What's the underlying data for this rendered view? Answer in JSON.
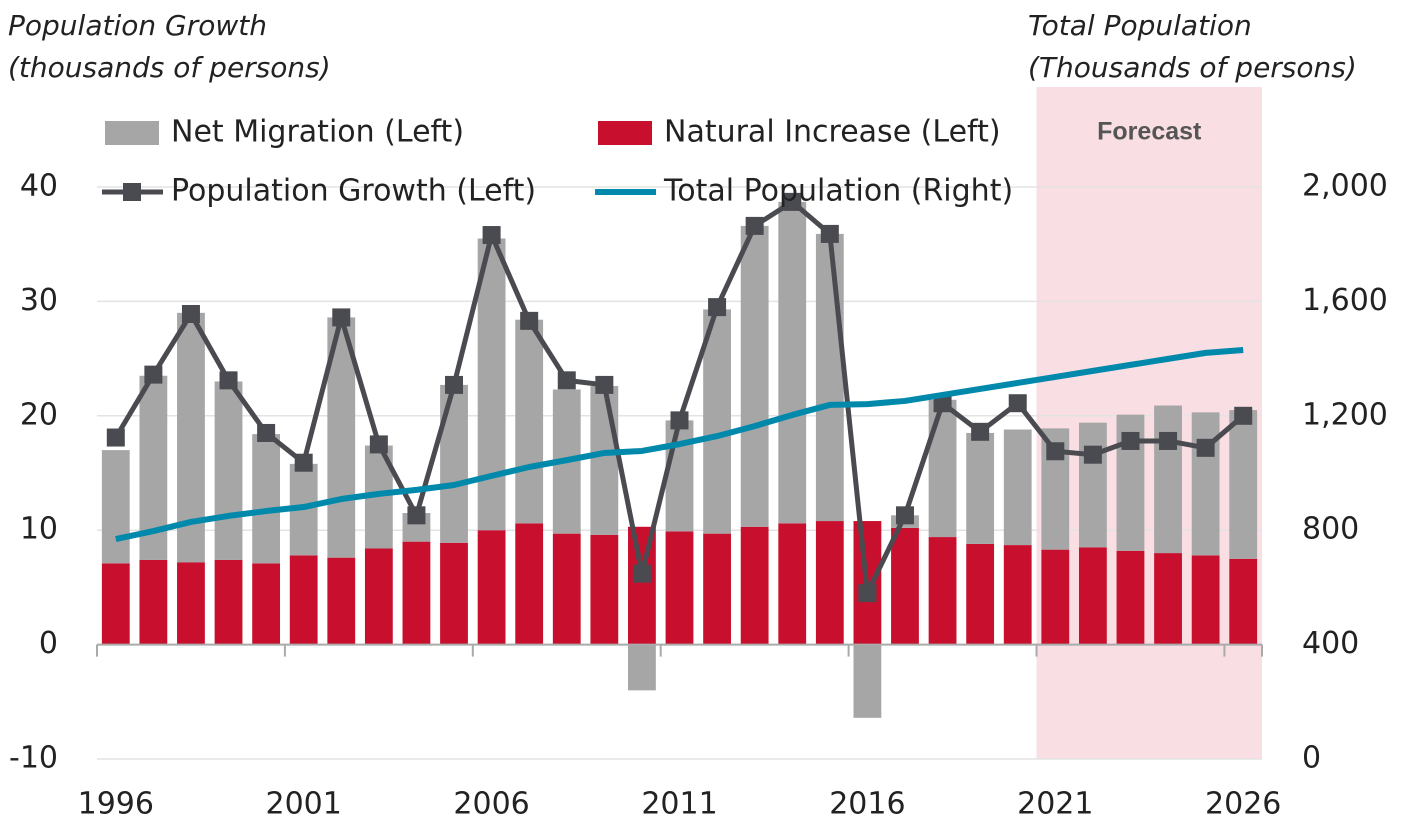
{
  "chart_data": {
    "type": "combo",
    "ylabel": [
      "Population Growth",
      "(thousands of persons)"
    ],
    "y2label": [
      "Total Population",
      "(Thousands of persons)"
    ],
    "x": [
      1996,
      1997,
      1998,
      1999,
      2000,
      2001,
      2002,
      2003,
      2004,
      2005,
      2006,
      2007,
      2008,
      2009,
      2010,
      2011,
      2012,
      2013,
      2014,
      2015,
      2016,
      2017,
      2018,
      2019,
      2020,
      2021,
      2022,
      2023,
      2024,
      2025,
      2026
    ],
    "xlim": [
      1995.5,
      2026.5
    ],
    "xticks": [
      1996,
      2001,
      2006,
      2011,
      2016,
      2021,
      2026
    ],
    "ylim": [
      -10,
      40
    ],
    "yticks": [
      -10,
      0,
      10,
      20,
      30,
      40
    ],
    "y2lim": [
      0,
      2000
    ],
    "y2ticks": [
      0,
      400,
      800,
      {
        "value": 1200,
        "label": "1,200"
      },
      {
        "value": 1600,
        "label": "1,600"
      },
      {
        "value": 2000,
        "label": "2,000"
      }
    ],
    "grid": true,
    "shaded_region": {
      "label": "Forecast",
      "x": [
        2020.5,
        2026.5
      ],
      "color": "#f9dfe3"
    },
    "series": [
      {
        "name": "Natural Increase (Left)",
        "type": "bar",
        "color": "#c8102e",
        "values": [
          7.1,
          7.4,
          7.2,
          7.4,
          7.1,
          7.8,
          7.6,
          8.4,
          9.0,
          8.9,
          10.0,
          10.6,
          9.7,
          9.6,
          10.3,
          9.9,
          9.7,
          10.3,
          10.6,
          10.8,
          10.8,
          10.2,
          9.4,
          8.8,
          8.7,
          8.3,
          8.5,
          8.2,
          8.0,
          7.8,
          7.5
        ]
      },
      {
        "name": "Net Migration (Left)",
        "type": "bar",
        "color": "#a6a6a6",
        "values": [
          9.9,
          16.1,
          21.8,
          15.6,
          11.3,
          8.0,
          21.0,
          9.0,
          2.5,
          13.8,
          25.5,
          17.8,
          12.6,
          13.0,
          -4.0,
          9.7,
          19.6,
          26.3,
          28.1,
          25.1,
          -6.4,
          1.1,
          12.0,
          9.7,
          10.1,
          10.6,
          10.9,
          11.9,
          12.9,
          12.5,
          13.0
        ]
      },
      {
        "name": "Population Growth (Left)",
        "type": "line-marker",
        "color": "#4a4b50",
        "values": [
          18.1,
          23.6,
          28.9,
          23.1,
          18.5,
          15.9,
          28.6,
          17.5,
          11.3,
          22.7,
          35.8,
          28.3,
          23.1,
          22.7,
          6.2,
          19.6,
          29.5,
          36.6,
          38.7,
          35.9,
          4.5,
          11.3,
          21.1,
          18.6,
          21.1,
          16.9,
          16.6,
          17.8,
          17.8,
          17.2,
          20.0
        ]
      },
      {
        "name": "Total Population (Right)",
        "type": "line",
        "axis": "y2",
        "color": "#0089ab",
        "values": [
          769,
          797,
          829,
          850,
          867,
          881,
          909,
          927,
          941,
          958,
          990,
          1021,
          1045,
          1070,
          1077,
          1101,
          1129,
          1164,
          1203,
          1238,
          1241,
          1252,
          1273,
          1294,
          1315,
          1336,
          1357,
          1378,
          1399,
          1420,
          1430
        ]
      }
    ]
  }
}
